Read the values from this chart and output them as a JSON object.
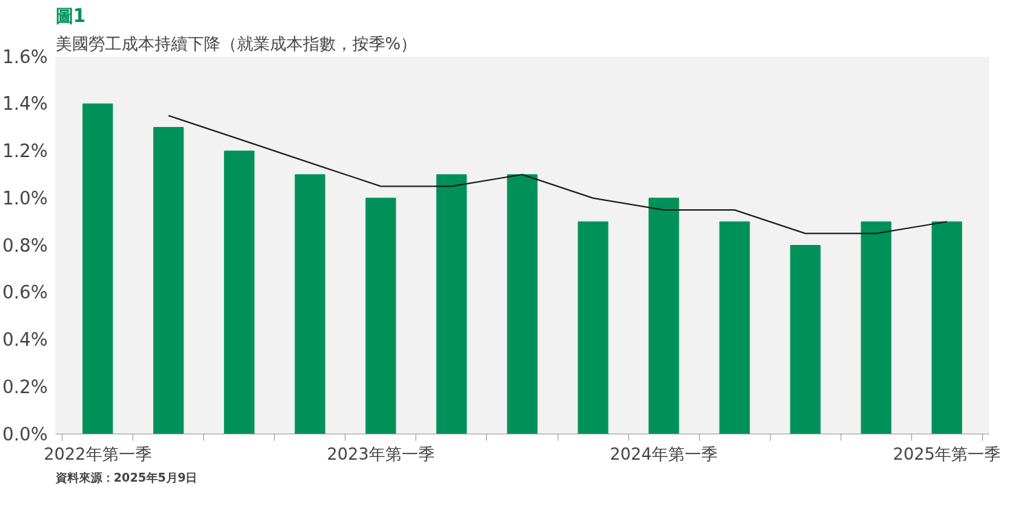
{
  "chart_data": {
    "type": "bar",
    "title": "圖1",
    "subtitle": "美國勞工成本持續下降（就業成本指數，按季%）",
    "categories": [
      "2022年第一季",
      null,
      null,
      null,
      "2023年第一季",
      null,
      null,
      null,
      "2024年第一季",
      null,
      null,
      null,
      "2025年第一季"
    ],
    "series": [
      {
        "color": "#00915a",
        "values": [
          1.4,
          1.3,
          1.2,
          1.1,
          1.0,
          1.1,
          1.1,
          0.9,
          1.0,
          0.9,
          0.8,
          0.9,
          0.9
        ]
      },
      {
        "type": "line",
        "color": "#1a1a1a",
        "values": [
          null,
          1.35,
          1.25,
          1.15,
          1.05,
          1.05,
          1.1,
          1.0,
          0.95,
          0.95,
          0.85,
          0.85,
          0.9
        ]
      }
    ],
    "ylim": [
      0,
      1.6
    ],
    "yticks": [
      {
        "value": 0,
        "label": "0.0%"
      },
      {
        "value": 0.2,
        "label": "0.2%"
      },
      {
        "value": 0.4,
        "label": "0.4%"
      },
      {
        "value": 0.6,
        "label": "0.6%"
      },
      {
        "value": 0.8,
        "label": "0.8%"
      },
      {
        "value": 1.0,
        "label": "1.0%"
      },
      {
        "value": 1.2,
        "label": "1.2%"
      },
      {
        "value": 1.4,
        "label": "1.4%"
      },
      {
        "value": 1.6,
        "label": "1.6%"
      }
    ],
    "annotations": [
      "資料來源：2025年5月9日"
    ]
  }
}
